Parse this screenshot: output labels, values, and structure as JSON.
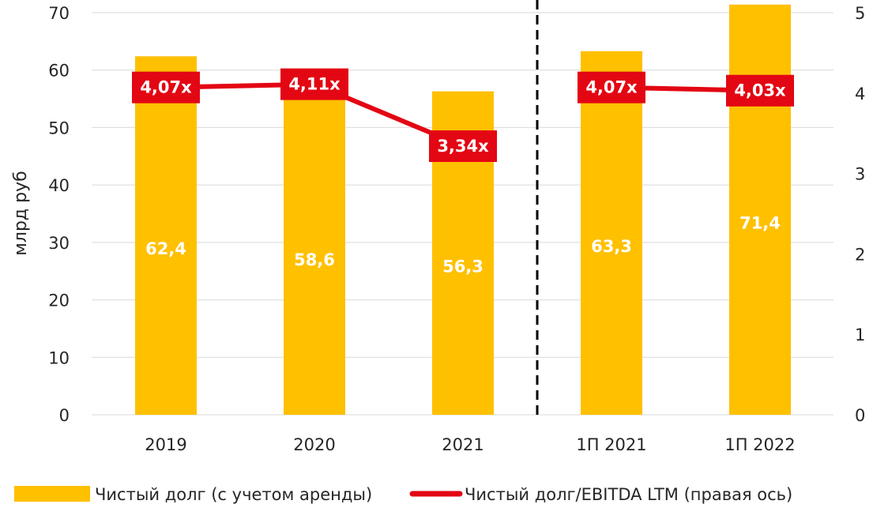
{
  "colors": {
    "bar": "#FFC000",
    "line": "#E30613",
    "grid": "#D9D9D9",
    "divider": "#000000"
  },
  "chart_data": {
    "type": "bar",
    "categories": [
      "2019",
      "2020",
      "2021",
      "1П 2021",
      "1П 2022"
    ],
    "series": [
      {
        "name": "Чистый долг (с учетом аренды)",
        "type": "bar",
        "axis": "left",
        "values": [
          62.4,
          58.6,
          56.3,
          63.3,
          71.4
        ],
        "labels": [
          "62,4",
          "58,6",
          "56,3",
          "63,3",
          "71,4"
        ]
      },
      {
        "name": "Чистый долг/EBITDA LTM (правая ось)",
        "type": "line",
        "axis": "right",
        "values": [
          4.07,
          4.11,
          3.34,
          4.07,
          4.03
        ],
        "labels": [
          "4,07x",
          "4,11x",
          "3,34x",
          "4,07x",
          "4,03x"
        ]
      }
    ],
    "ylabel": "млрд руб",
    "ylim": [
      0,
      70
    ],
    "y_ticks": [
      "0",
      "10",
      "20",
      "30",
      "40",
      "50",
      "60",
      "70"
    ],
    "y2lim": [
      0,
      5
    ],
    "y2_ticks": [
      "0",
      "1",
      "2",
      "3",
      "4",
      "5"
    ],
    "grid": true,
    "legend": "bottom",
    "divider_between": [
      "2021",
      "1П 2021"
    ]
  }
}
